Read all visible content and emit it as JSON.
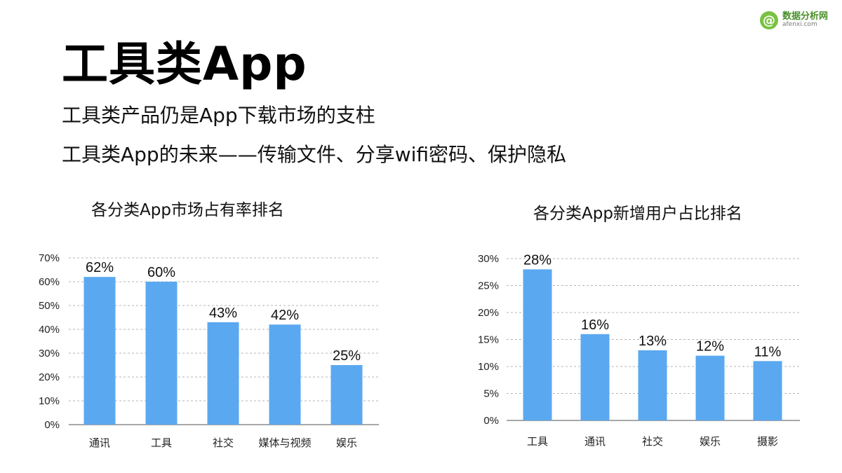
{
  "logo": {
    "mark": "@",
    "name": "数据分析网",
    "url": "afenxi.com"
  },
  "header": {
    "title": "工具类App",
    "subtitle_1": "工具类产品仍是App下载市场的支柱",
    "subtitle_2": "工具类App的未来——传输文件、分享wifi密码、保护隐私"
  },
  "colors": {
    "bar": "#5aa8f0",
    "grid": "#b5b5b5",
    "axis": "#8c8c8c"
  },
  "chart_data": [
    {
      "type": "bar",
      "title": "各分类App市场占有率排名",
      "categories": [
        "通讯",
        "工具",
        "社交",
        "媒体与视频",
        "娱乐"
      ],
      "values": [
        62,
        60,
        43,
        42,
        25
      ],
      "value_labels": [
        "62%",
        "60%",
        "43%",
        "42%",
        "25%"
      ],
      "yticks": [
        "0%",
        "10%",
        "20%",
        "30%",
        "40%",
        "50%",
        "60%",
        "70%"
      ],
      "ylim": [
        0,
        70
      ],
      "grid": true,
      "xlabel": "",
      "ylabel": ""
    },
    {
      "type": "bar",
      "title": "各分类App新增用户占比排名",
      "categories": [
        "工具",
        "通讯",
        "社交",
        "娱乐",
        "摄影"
      ],
      "values": [
        28,
        16,
        13,
        12,
        11
      ],
      "value_labels": [
        "28%",
        "16%",
        "13%",
        "12%",
        "11%"
      ],
      "yticks": [
        "0%",
        "5%",
        "10%",
        "15%",
        "20%",
        "25%",
        "30%"
      ],
      "ylim": [
        0,
        30
      ],
      "grid": true,
      "xlabel": "",
      "ylabel": ""
    }
  ]
}
